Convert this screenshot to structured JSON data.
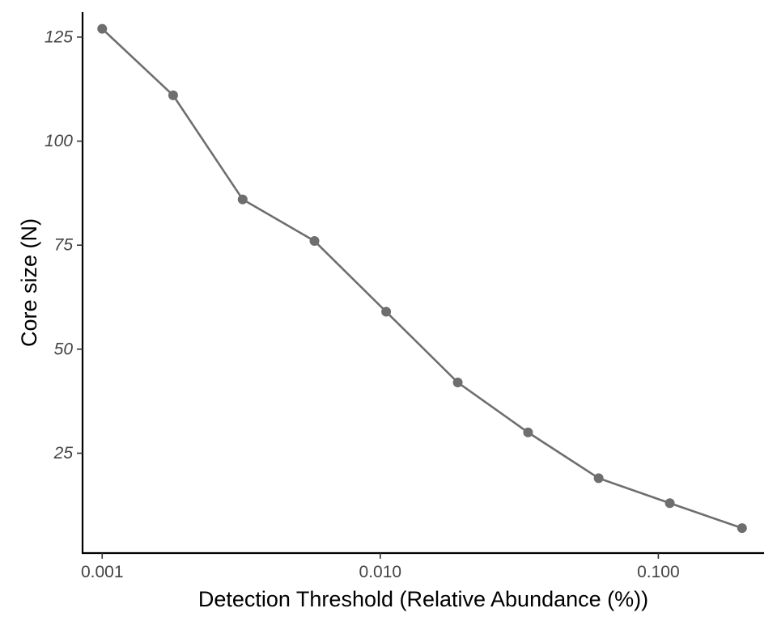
{
  "chart_data": {
    "type": "line",
    "title": "",
    "xlabel": "Detection Threshold (Relative Abundance (%))",
    "ylabel": "Core size (N)",
    "x_scale": "log10",
    "xlim": [
      0.00085,
      0.24
    ],
    "ylim": [
      1,
      131
    ],
    "x_ticks": [
      0.001,
      0.01,
      0.1
    ],
    "x_tick_labels": [
      "0.001",
      "0.010",
      "0.100"
    ],
    "y_ticks": [
      25,
      50,
      75,
      100,
      125
    ],
    "y_tick_labels": [
      "25",
      "50",
      "75",
      "100",
      "125"
    ],
    "grid": false,
    "legend": "none",
    "series": [
      {
        "color": "#6e6e6e",
        "x": [
          0.001,
          0.0018,
          0.0032,
          0.0058,
          0.0105,
          0.019,
          0.034,
          0.061,
          0.11,
          0.2
        ],
        "y": [
          127,
          111,
          86,
          76,
          59,
          42,
          30,
          19,
          13,
          7
        ]
      }
    ]
  }
}
